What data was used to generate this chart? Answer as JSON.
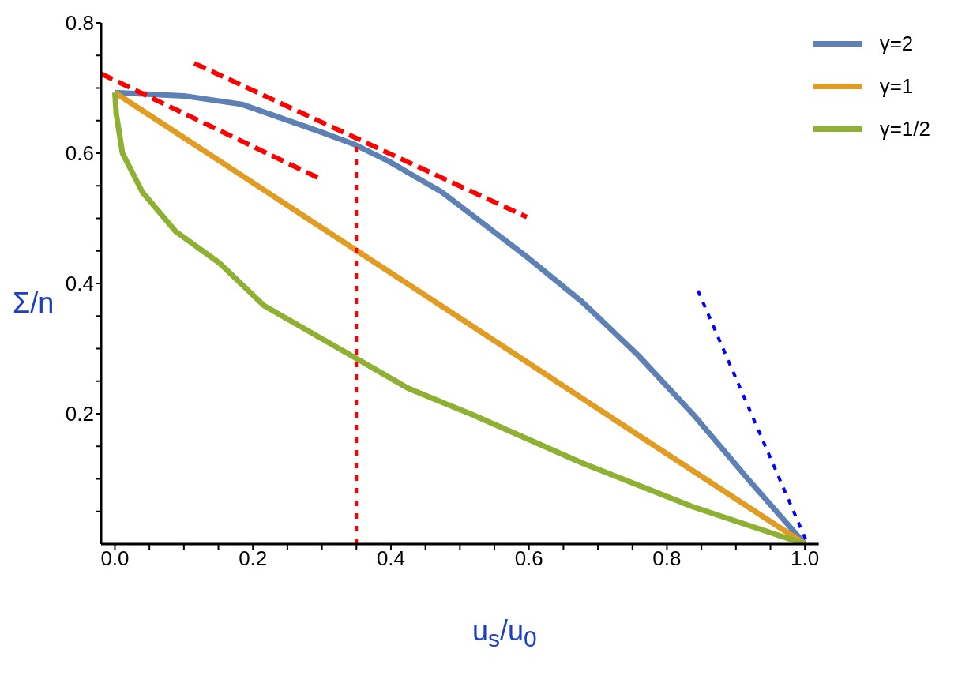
{
  "chart_data": {
    "type": "line",
    "xlabel": "u$_{s}$/u$_{0}$",
    "ylabel": "Σ/n",
    "xlim": [
      -0.02,
      1.02
    ],
    "ylim": [
      0,
      0.8
    ],
    "xticks": [
      {
        "value": 0,
        "label": "0.0"
      },
      {
        "value": 0.05,
        "label": null
      },
      {
        "value": 0.1,
        "label": null
      },
      {
        "value": 0.15,
        "label": null
      },
      {
        "value": 0.2,
        "label": "0.2"
      },
      {
        "value": 0.25,
        "label": null
      },
      {
        "value": 0.3,
        "label": null
      },
      {
        "value": 0.35,
        "label": null
      },
      {
        "value": 0.4,
        "label": "0.4"
      },
      {
        "value": 0.45,
        "label": null
      },
      {
        "value": 0.5,
        "label": null
      },
      {
        "value": 0.55,
        "label": null
      },
      {
        "value": 0.6,
        "label": "0.6"
      },
      {
        "value": 0.65,
        "label": null
      },
      {
        "value": 0.7,
        "label": null
      },
      {
        "value": 0.75,
        "label": null
      },
      {
        "value": 0.8,
        "label": "0.8"
      },
      {
        "value": 0.85,
        "label": null
      },
      {
        "value": 0.9,
        "label": null
      },
      {
        "value": 0.95,
        "label": null
      },
      {
        "value": 1,
        "label": "1.0"
      }
    ],
    "yticks": [
      {
        "value": 0.05,
        "label": null
      },
      {
        "value": 0.1,
        "label": null
      },
      {
        "value": 0.15,
        "label": null
      },
      {
        "value": 0.2,
        "label": "0.2"
      },
      {
        "value": 0.25,
        "label": null
      },
      {
        "value": 0.3,
        "label": null
      },
      {
        "value": 0.35,
        "label": null
      },
      {
        "value": 0.4,
        "label": "0.4"
      },
      {
        "value": 0.45,
        "label": null
      },
      {
        "value": 0.5,
        "label": null
      },
      {
        "value": 0.55,
        "label": null
      },
      {
        "value": 0.6,
        "label": "0.6"
      },
      {
        "value": 0.65,
        "label": null
      },
      {
        "value": 0.7,
        "label": null
      },
      {
        "value": 0.75,
        "label": null
      },
      {
        "value": 0.8,
        "label": "0.8"
      }
    ],
    "grid": false,
    "legend": "top right",
    "marker": "none",
    "line_style": "solid",
    "series": [
      {
        "name": "γ=2",
        "color": "#5e81b5",
        "x": [
          0,
          0.1,
          0.184,
          0.3,
          0.348,
          0.396,
          0.473,
          0.597,
          0.678,
          0.758,
          0.838,
          0.919,
          1
        ],
        "values": [
          0.693,
          0.688,
          0.675,
          0.632,
          0.613,
          0.588,
          0.541,
          0.441,
          0.371,
          0.29,
          0.199,
          0.098,
          0
        ]
      },
      {
        "name": "γ=1",
        "color": "#e19c24",
        "x": [
          0,
          0.25,
          0.5,
          0.75,
          1
        ],
        "values": [
          0.693,
          0.52,
          0.347,
          0.173,
          0
        ]
      },
      {
        "name": "γ=1/2",
        "color": "#8fb032",
        "x": [
          0,
          0.002,
          0.011,
          0.04,
          0.088,
          0.152,
          0.216,
          0.348,
          0.425,
          0.517,
          0.678,
          0.838,
          1
        ],
        "values": [
          0.693,
          0.66,
          0.6,
          0.54,
          0.48,
          0.431,
          0.366,
          0.286,
          0.239,
          0.199,
          0.124,
          0.057,
          0
        ]
      },
      {
        "color": "#ff0000",
        "line_style": "dashed",
        "x": [
          -0.02,
          0.295
        ],
        "values": [
          0.722,
          0.562
        ]
      },
      {
        "color": "#ff0000",
        "line_style": "dashed",
        "x": [
          0.115,
          0.597
        ],
        "values": [
          0.738,
          0.502
        ]
      },
      {
        "color": "#ff0000",
        "line_style": "dotted",
        "x": [
          0.35,
          0.35
        ],
        "values": [
          0,
          0.625
        ]
      },
      {
        "color": "#0000ff",
        "line_style": "dotted",
        "x": [
          0.845,
          1.004
        ],
        "values": [
          0.389,
          0
        ]
      }
    ]
  }
}
